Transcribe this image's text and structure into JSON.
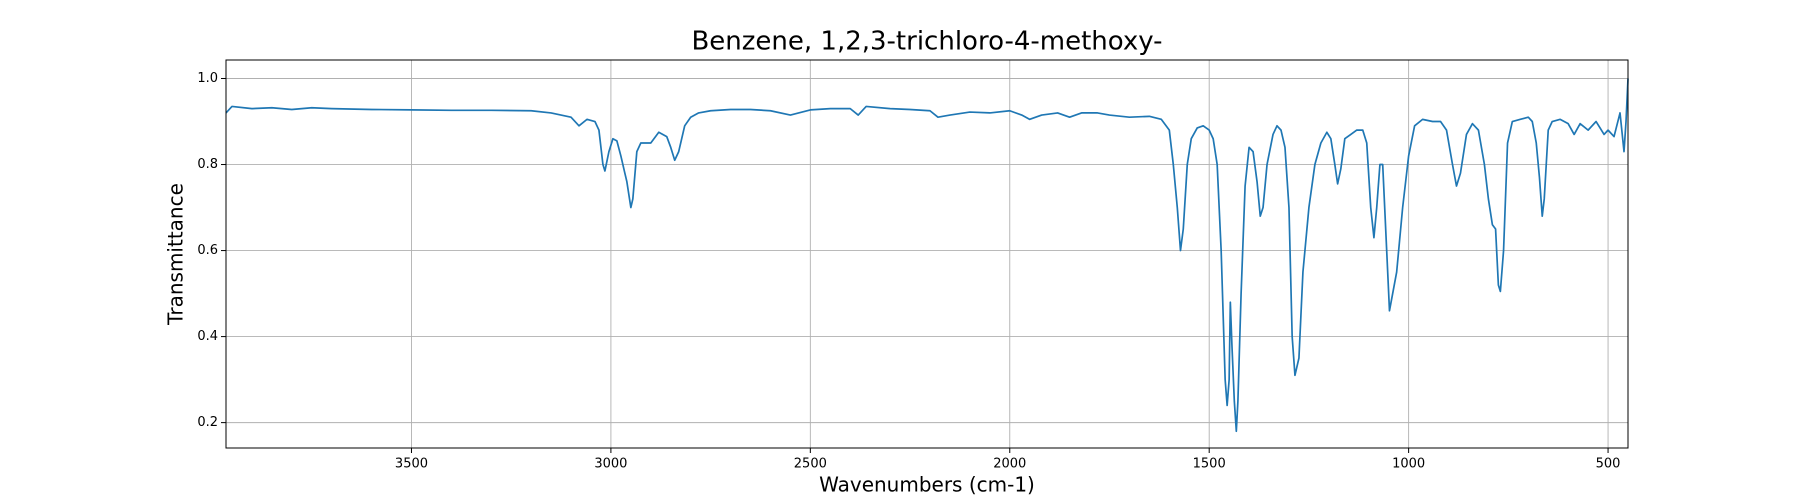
{
  "chart_data": {
    "type": "line",
    "title": "Benzene, 1,2,3-trichloro-4-methoxy-",
    "xlabel": "Wavenumbers (cm-1)",
    "ylabel": "Transmittance",
    "xlim": [
      3965,
      450
    ],
    "ylim": [
      0.141,
      1.043
    ],
    "xticks": [
      3500,
      3000,
      2500,
      2000,
      1500,
      1000,
      500
    ],
    "yticks": [
      0.2,
      0.4,
      0.6,
      0.8,
      {
        "value": 1.0,
        "label": "1.0"
      }
    ],
    "grid": true,
    "x": [
      3965,
      3950,
      3900,
      3850,
      3800,
      3750,
      3700,
      3600,
      3500,
      3400,
      3300,
      3200,
      3150,
      3100,
      3080,
      3060,
      3040,
      3030,
      3020,
      3015,
      3005,
      2995,
      2985,
      2975,
      2965,
      2960,
      2950,
      2945,
      2935,
      2925,
      2900,
      2880,
      2860,
      2850,
      2840,
      2830,
      2815,
      2800,
      2780,
      2750,
      2700,
      2650,
      2600,
      2550,
      2500,
      2450,
      2400,
      2380,
      2360,
      2300,
      2250,
      2200,
      2180,
      2150,
      2100,
      2050,
      2000,
      1970,
      1950,
      1920,
      1880,
      1850,
      1820,
      1780,
      1750,
      1700,
      1650,
      1620,
      1600,
      1590,
      1580,
      1572,
      1565,
      1555,
      1545,
      1530,
      1515,
      1500,
      1490,
      1480,
      1470,
      1460,
      1455,
      1450,
      1447,
      1443,
      1437,
      1432,
      1428,
      1420,
      1410,
      1400,
      1390,
      1380,
      1372,
      1365,
      1355,
      1340,
      1330,
      1320,
      1310,
      1300,
      1292,
      1285,
      1275,
      1265,
      1250,
      1235,
      1220,
      1205,
      1195,
      1185,
      1178,
      1170,
      1160,
      1145,
      1130,
      1115,
      1105,
      1095,
      1087,
      1080,
      1072,
      1065,
      1055,
      1048,
      1040,
      1030,
      1015,
      1000,
      985,
      965,
      940,
      920,
      905,
      890,
      880,
      870,
      855,
      840,
      825,
      810,
      800,
      790,
      782,
      775,
      770,
      762,
      752,
      740,
      720,
      700,
      690,
      680,
      672,
      665,
      660,
      650,
      640,
      620,
      600,
      585,
      570,
      550,
      530,
      510,
      500,
      485,
      470,
      460,
      455,
      450
    ],
    "series": [
      {
        "name": "Transmittance",
        "color": "#1f77b4",
        "values": [
          0.92,
          0.935,
          0.93,
          0.932,
          0.928,
          0.932,
          0.93,
          0.928,
          0.927,
          0.926,
          0.926,
          0.925,
          0.92,
          0.91,
          0.89,
          0.905,
          0.9,
          0.88,
          0.8,
          0.785,
          0.83,
          0.86,
          0.855,
          0.82,
          0.78,
          0.76,
          0.7,
          0.72,
          0.83,
          0.85,
          0.85,
          0.875,
          0.865,
          0.84,
          0.81,
          0.83,
          0.89,
          0.91,
          0.92,
          0.925,
          0.928,
          0.928,
          0.925,
          0.915,
          0.927,
          0.93,
          0.93,
          0.915,
          0.935,
          0.93,
          0.928,
          0.925,
          0.91,
          0.915,
          0.922,
          0.92,
          0.925,
          0.915,
          0.905,
          0.915,
          0.92,
          0.91,
          0.92,
          0.92,
          0.915,
          0.91,
          0.912,
          0.905,
          0.88,
          0.8,
          0.7,
          0.6,
          0.65,
          0.8,
          0.86,
          0.885,
          0.89,
          0.88,
          0.86,
          0.8,
          0.6,
          0.3,
          0.24,
          0.3,
          0.48,
          0.38,
          0.25,
          0.18,
          0.25,
          0.5,
          0.75,
          0.84,
          0.83,
          0.76,
          0.68,
          0.7,
          0.8,
          0.87,
          0.89,
          0.88,
          0.84,
          0.7,
          0.4,
          0.31,
          0.35,
          0.55,
          0.7,
          0.8,
          0.85,
          0.875,
          0.86,
          0.8,
          0.755,
          0.79,
          0.86,
          0.87,
          0.88,
          0.88,
          0.85,
          0.7,
          0.63,
          0.7,
          0.8,
          0.8,
          0.6,
          0.46,
          0.5,
          0.55,
          0.7,
          0.82,
          0.89,
          0.905,
          0.9,
          0.9,
          0.88,
          0.8,
          0.75,
          0.78,
          0.87,
          0.895,
          0.88,
          0.8,
          0.72,
          0.66,
          0.65,
          0.52,
          0.505,
          0.6,
          0.85,
          0.9,
          0.905,
          0.91,
          0.9,
          0.85,
          0.77,
          0.68,
          0.72,
          0.88,
          0.9,
          0.905,
          0.895,
          0.87,
          0.895,
          0.88,
          0.9,
          0.87,
          0.88,
          0.865,
          0.92,
          0.83,
          0.9,
          1.0
        ]
      }
    ]
  }
}
